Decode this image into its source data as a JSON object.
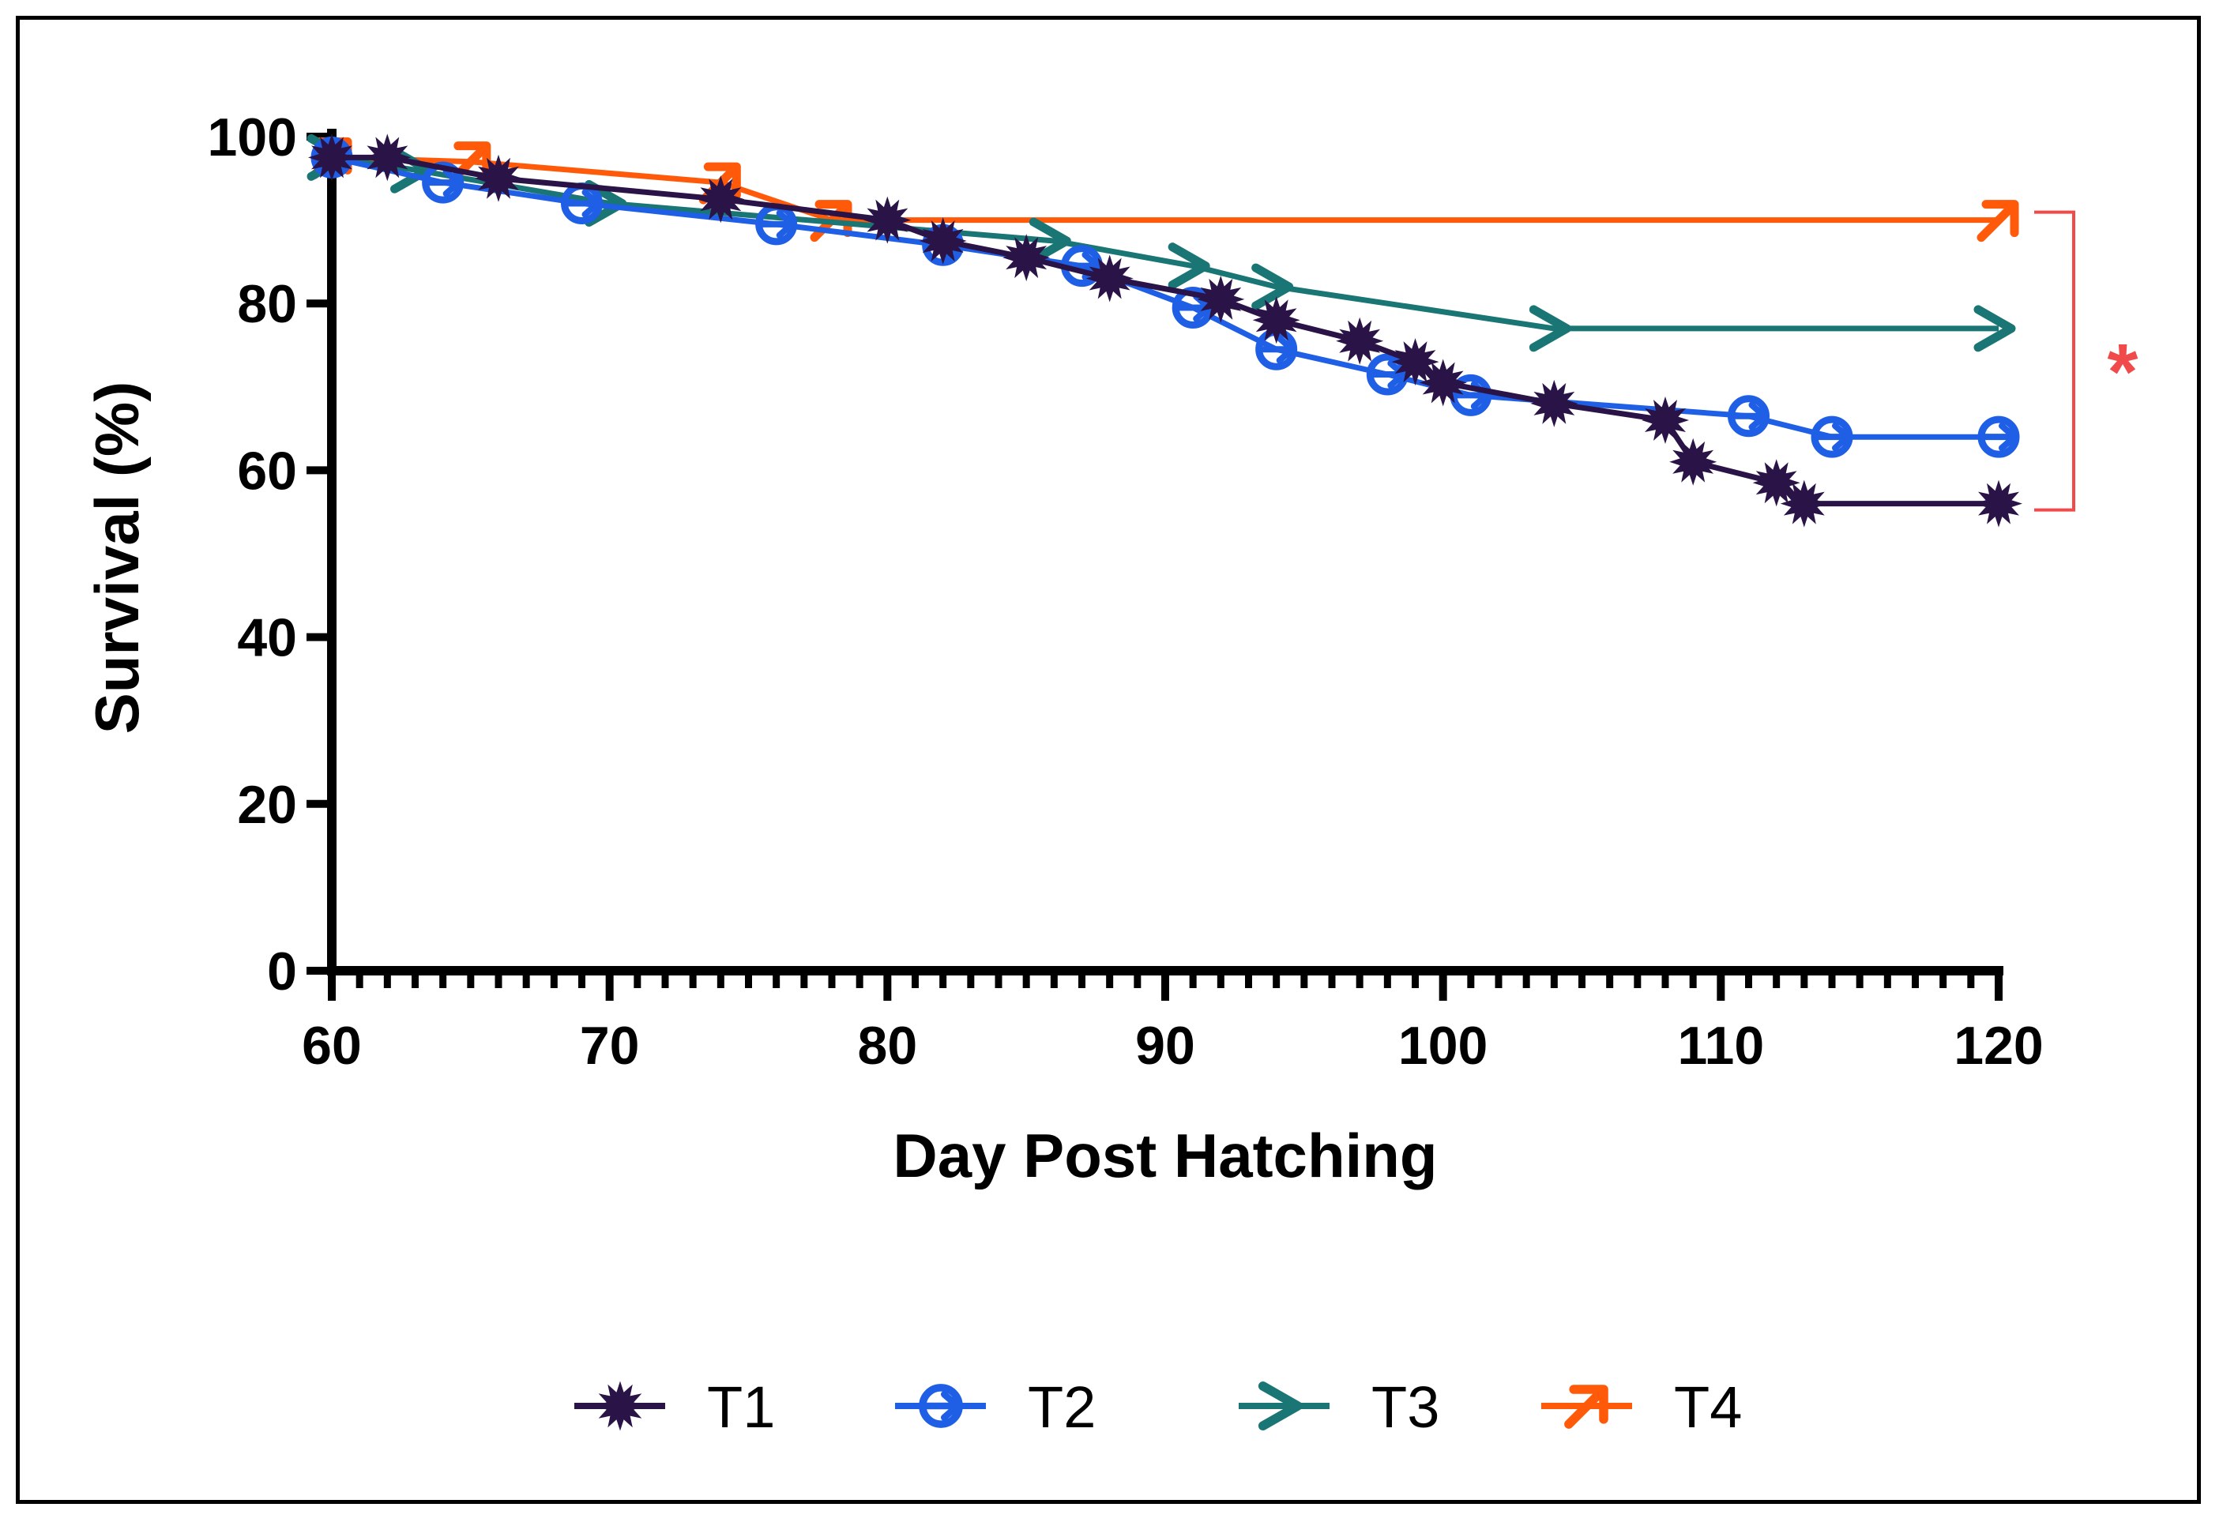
{
  "chart_data": {
    "type": "line",
    "title": "",
    "xlabel": "Day Post Hatching",
    "ylabel": "Survival (%)",
    "xlim": [
      60,
      120
    ],
    "ylim": [
      0,
      100
    ],
    "x_ticks": [
      60,
      70,
      80,
      90,
      100,
      110,
      120
    ],
    "y_ticks": [
      0,
      20,
      40,
      60,
      80,
      100
    ],
    "grid": false,
    "legend_position": "bottom",
    "series": [
      {
        "name": "T1",
        "color": "#2a1447",
        "marker": "star-burst",
        "x": [
          60,
          62,
          66,
          74,
          80,
          82,
          85,
          88,
          92,
          94,
          97,
          99,
          100,
          104,
          108,
          109,
          112,
          113,
          120
        ],
        "y": [
          97.5,
          97.5,
          95,
          92.5,
          90,
          87.5,
          85.5,
          83,
          80.5,
          78,
          75.5,
          73,
          70.5,
          68,
          66,
          61,
          58.5,
          56,
          56
        ]
      },
      {
        "name": "T2",
        "color": "#1f5fe6",
        "marker": "circle-arrow",
        "x": [
          60,
          64,
          69,
          76,
          82,
          87,
          91,
          94,
          98,
          101,
          111,
          114,
          120
        ],
        "y": [
          97.5,
          94.5,
          92,
          89.5,
          87,
          84.5,
          79.5,
          74.5,
          71.5,
          69,
          66.5,
          64,
          64
        ]
      },
      {
        "name": "T3",
        "color": "#1a7575",
        "marker": "arrow",
        "x": [
          60,
          63,
          70,
          86,
          91,
          94,
          104,
          120
        ],
        "y": [
          97.5,
          96,
          92,
          87.5,
          84.5,
          82,
          77,
          77
        ]
      },
      {
        "name": "T4",
        "color": "#ff5a0a",
        "marker": "arrow-ne",
        "x": [
          60,
          65,
          74,
          78,
          120
        ],
        "y": [
          97.5,
          97,
          94.5,
          90,
          90
        ]
      }
    ],
    "annotations": [
      {
        "text": "*",
        "color": "#f04a4a",
        "type": "significance-bracket",
        "from_series": "T4",
        "to_series": "T1"
      }
    ]
  }
}
